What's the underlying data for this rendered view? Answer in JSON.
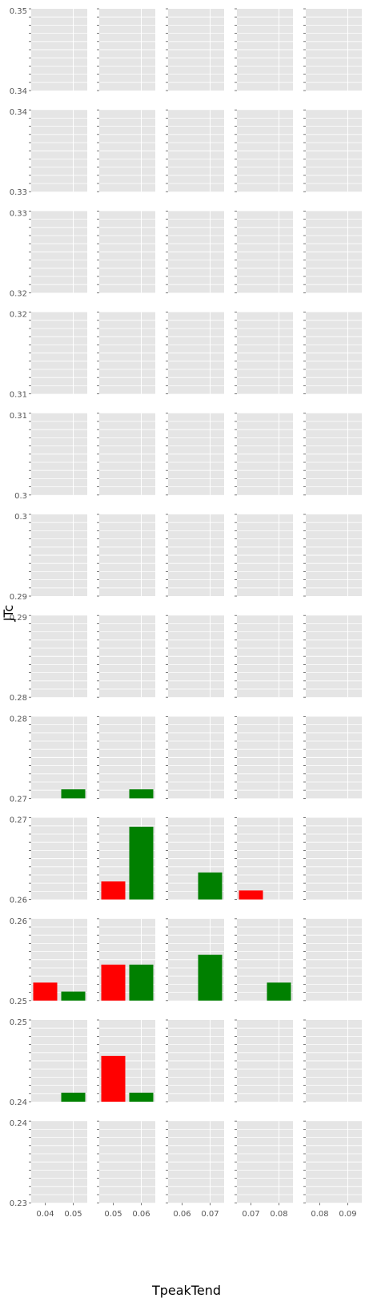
{
  "chart_data": {
    "type": "bar",
    "layout": "faceted-grid",
    "xlabel": "TpeakTend",
    "ylabel": "JTc",
    "colors": {
      "red": "#ff0000",
      "green": "#008000",
      "panel_bg": "#e5e5e5",
      "grid": "#ffffff"
    },
    "rows": [
      {
        "ylim": [
          0.34,
          0.35
        ],
        "ticks": [
          "0.35",
          "0.34"
        ]
      },
      {
        "ylim": [
          0.33,
          0.34
        ],
        "ticks": [
          "0.34",
          "0.33"
        ]
      },
      {
        "ylim": [
          0.32,
          0.33
        ],
        "ticks": [
          "0.33",
          "0.32"
        ]
      },
      {
        "ylim": [
          0.31,
          0.32
        ],
        "ticks": [
          "0.32",
          "0.31"
        ]
      },
      {
        "ylim": [
          0.3,
          0.31
        ],
        "ticks": [
          "0.31",
          "0.3"
        ]
      },
      {
        "ylim": [
          0.29,
          0.3
        ],
        "ticks": [
          "0.3",
          "0.29"
        ]
      },
      {
        "ylim": [
          0.28,
          0.29
        ],
        "ticks": [
          "0.29",
          "0.28"
        ]
      },
      {
        "ylim": [
          0.27,
          0.28
        ],
        "ticks": [
          "0.28",
          "0.27"
        ]
      },
      {
        "ylim": [
          0.26,
          0.27
        ],
        "ticks": [
          "0.27",
          "0.26"
        ]
      },
      {
        "ylim": [
          0.25,
          0.26
        ],
        "ticks": [
          "0.26",
          "0.25"
        ]
      },
      {
        "ylim": [
          0.24,
          0.25
        ],
        "ticks": [
          "0.25",
          "0.24"
        ]
      },
      {
        "ylim": [
          0.23,
          0.24
        ],
        "ticks": [
          "0.24",
          "0.23"
        ]
      }
    ],
    "columns": [
      {
        "xlim": [
          0.035,
          0.055
        ],
        "ticks": [
          "0.04",
          "0.05"
        ]
      },
      {
        "xlim": [
          0.045,
          0.065
        ],
        "ticks": [
          "0.05",
          "0.06"
        ]
      },
      {
        "xlim": [
          0.055,
          0.075
        ],
        "ticks": [
          "0.06",
          "0.07"
        ]
      },
      {
        "xlim": [
          0.065,
          0.085
        ],
        "ticks": [
          "0.07",
          "0.08"
        ]
      },
      {
        "xlim": [
          0.075,
          0.095
        ],
        "ticks": [
          "0.08",
          "0.09"
        ]
      }
    ],
    "bars": [
      {
        "row": 7,
        "col": 0,
        "x": 0.05,
        "y": 0.2711,
        "color": "green"
      },
      {
        "row": 7,
        "col": 1,
        "x": 0.06,
        "y": 0.2711,
        "color": "green"
      },
      {
        "row": 8,
        "col": 1,
        "x": 0.05,
        "y": 0.2622,
        "color": "red"
      },
      {
        "row": 8,
        "col": 1,
        "x": 0.06,
        "y": 0.2689,
        "color": "green"
      },
      {
        "row": 8,
        "col": 2,
        "x": 0.07,
        "y": 0.2633,
        "color": "green"
      },
      {
        "row": 8,
        "col": 3,
        "x": 0.07,
        "y": 0.2611,
        "color": "red"
      },
      {
        "row": 9,
        "col": 0,
        "x": 0.04,
        "y": 0.2522,
        "color": "red"
      },
      {
        "row": 9,
        "col": 0,
        "x": 0.05,
        "y": 0.2511,
        "color": "green"
      },
      {
        "row": 9,
        "col": 1,
        "x": 0.05,
        "y": 0.2544,
        "color": "red"
      },
      {
        "row": 9,
        "col": 1,
        "x": 0.06,
        "y": 0.2544,
        "color": "green"
      },
      {
        "row": 9,
        "col": 2,
        "x": 0.07,
        "y": 0.2556,
        "color": "green"
      },
      {
        "row": 9,
        "col": 3,
        "x": 0.08,
        "y": 0.2522,
        "color": "green"
      },
      {
        "row": 10,
        "col": 0,
        "x": 0.05,
        "y": 0.2411,
        "color": "green"
      },
      {
        "row": 10,
        "col": 1,
        "x": 0.05,
        "y": 0.2456,
        "color": "red"
      },
      {
        "row": 10,
        "col": 1,
        "x": 0.06,
        "y": 0.2411,
        "color": "green"
      }
    ]
  }
}
